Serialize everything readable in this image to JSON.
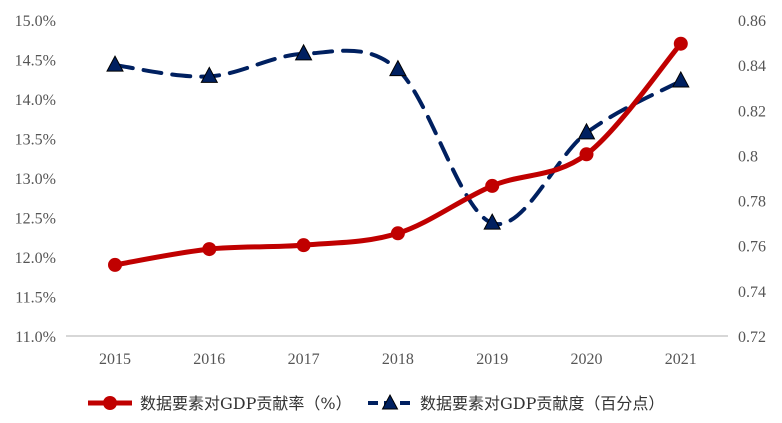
{
  "chart_data": {
    "type": "line",
    "title": "",
    "xlabel": "",
    "ylabel": "",
    "x": [
      "2015",
      "2016",
      "2017",
      "2018",
      "2019",
      "2020",
      "2021"
    ],
    "series": [
      {
        "name": "数据要素对GDP贡献率（%）",
        "axis": "left",
        "values": [
          11.9,
          12.1,
          12.15,
          12.3,
          12.9,
          13.3,
          14.7
        ],
        "color": "#C00000",
        "marker": "circle",
        "line_style": "solid"
      },
      {
        "name": "数据要素对GDP贡献度（百分点）",
        "axis": "right",
        "values": [
          0.84,
          0.835,
          0.845,
          0.838,
          0.77,
          0.81,
          0.833
        ],
        "color": "#002060",
        "marker": "triangle",
        "line_style": "dashed"
      }
    ],
    "y_left": {
      "ylim": [
        11.0,
        15.0
      ],
      "ticks": [
        "11.0%",
        "11.5%",
        "12.0%",
        "12.5%",
        "13.0%",
        "13.5%",
        "14.0%",
        "14.5%",
        "15.0%"
      ]
    },
    "y_right": {
      "ylim": [
        0.72,
        0.86
      ],
      "ticks": [
        "0.72",
        "0.74",
        "0.76",
        "0.78",
        "0.8",
        "0.82",
        "0.84",
        "0.86"
      ]
    },
    "grid": false,
    "legend_position": "bottom"
  }
}
